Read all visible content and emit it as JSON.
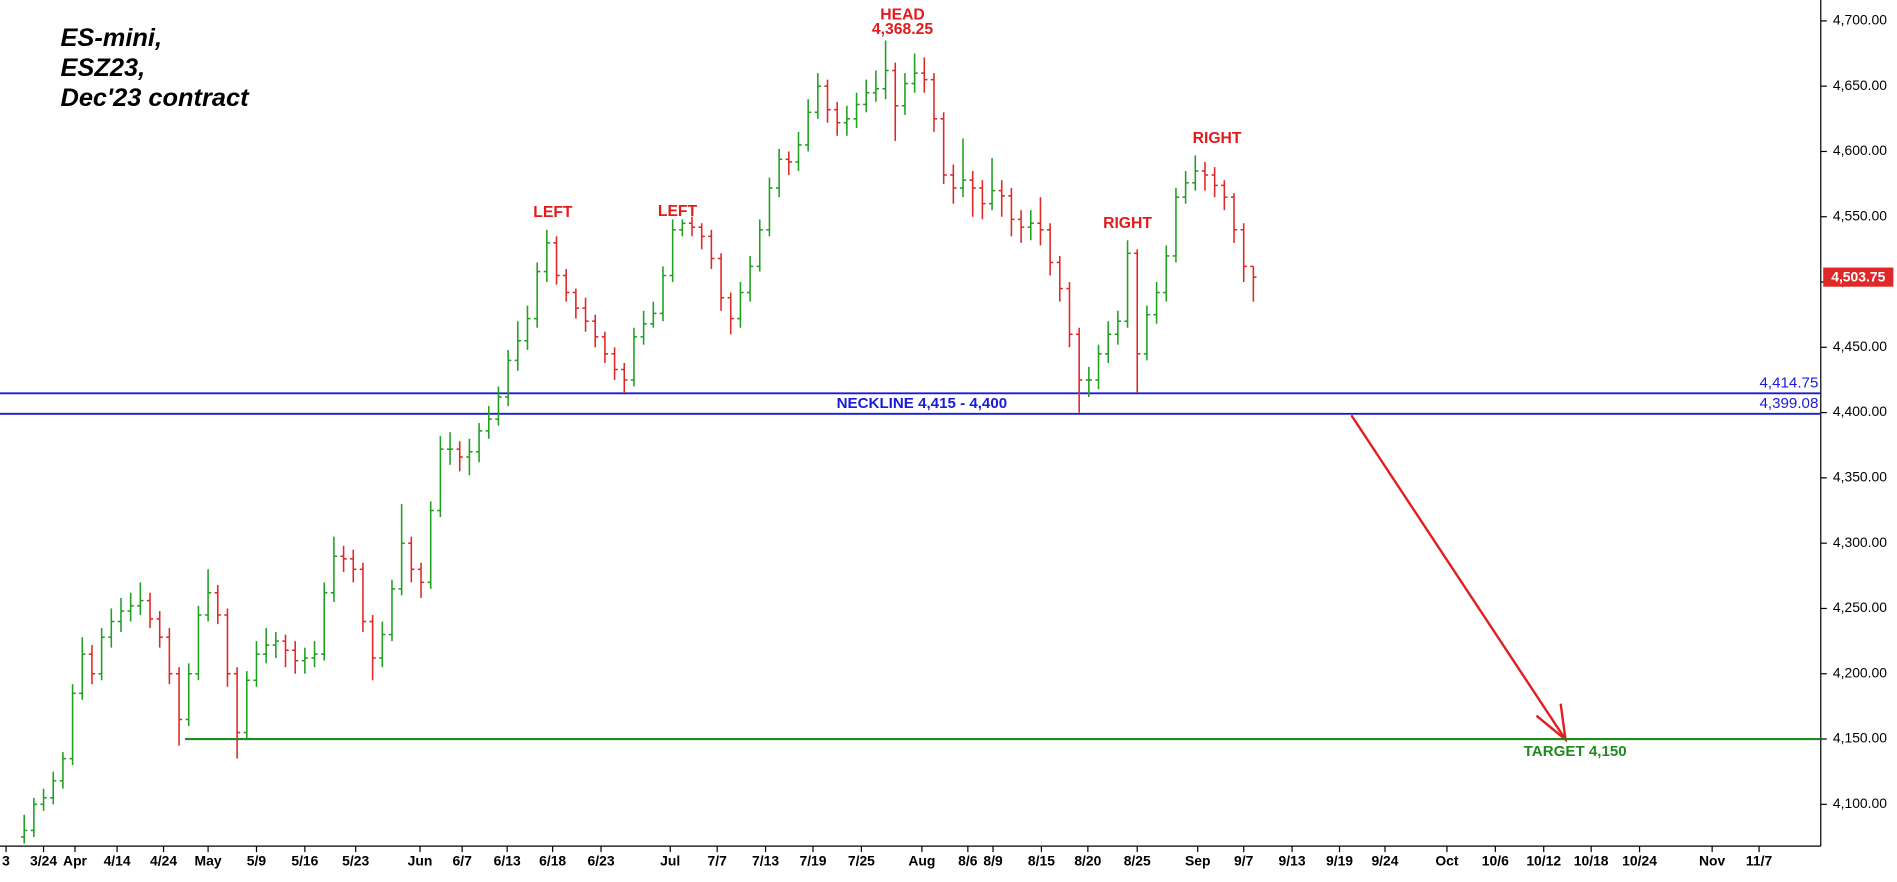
{
  "chart_data": {
    "type": "ohlc",
    "title_lines": [
      "ES-mini,",
      "ESZ23,",
      "Dec'23 contract"
    ],
    "open": [
      4075,
      4080,
      4100,
      4105,
      4118,
      4135,
      4185,
      4215,
      4200,
      4228,
      4240,
      4248,
      4252,
      4256,
      4242,
      4228,
      4200,
      4165,
      4200,
      4245,
      4262,
      4245,
      4200,
      4155,
      4195,
      4215,
      4222,
      4225,
      4218,
      4210,
      4212,
      4215,
      4262,
      4290,
      4288,
      4280,
      4240,
      4212,
      4230,
      4265,
      4300,
      4280,
      4270,
      4325,
      4372,
      4372,
      4366,
      4370,
      4386,
      4395,
      4412,
      4440,
      4455,
      4472,
      4508,
      4530,
      4505,
      4492,
      4480,
      4470,
      4458,
      4445,
      4433,
      4425,
      4458,
      4468,
      4476,
      4505,
      4540,
      4545,
      4542,
      4535,
      4518,
      4488,
      4472,
      4492,
      4512,
      4540,
      4572,
      4594,
      4592,
      4605,
      4630,
      4650,
      4632,
      4622,
      4625,
      4636,
      4645,
      4648,
      4662,
      4635,
      4652,
      4660,
      4655,
      4625,
      4582,
      4572,
      4578,
      4572,
      4560,
      4570,
      4566,
      4548,
      4542,
      4545,
      4540,
      4515,
      4495,
      4460,
      4425,
      4425,
      4445,
      4460,
      4470,
      4522,
      4445,
      4475,
      4492,
      4520,
      4565,
      4576,
      4585,
      4582,
      4574,
      4565,
      4540,
      4512
    ],
    "high": [
      4092,
      4105,
      4112,
      4125,
      4140,
      4192,
      4228,
      4222,
      4235,
      4250,
      4258,
      4262,
      4270,
      4262,
      4248,
      4235,
      4205,
      4208,
      4252,
      4280,
      4268,
      4250,
      4205,
      4202,
      4225,
      4235,
      4232,
      4230,
      4225,
      4220,
      4225,
      4270,
      4305,
      4298,
      4295,
      4285,
      4245,
      4240,
      4272,
      4330,
      4305,
      4285,
      4332,
      4382,
      4385,
      4378,
      4380,
      4392,
      4405,
      4420,
      4448,
      4470,
      4482,
      4515,
      4540,
      4535,
      4510,
      4495,
      4488,
      4475,
      4462,
      4450,
      4438,
      4465,
      4478,
      4485,
      4512,
      4548,
      4548,
      4550,
      4545,
      4540,
      4522,
      4492,
      4500,
      4520,
      4548,
      4580,
      4602,
      4600,
      4615,
      4640,
      4660,
      4655,
      4638,
      4635,
      4645,
      4655,
      4662,
      4685,
      4668,
      4660,
      4675,
      4672,
      4660,
      4630,
      4590,
      4610,
      4585,
      4578,
      4595,
      4578,
      4572,
      4555,
      4555,
      4565,
      4545,
      4520,
      4500,
      4465,
      4435,
      4452,
      4470,
      4478,
      4532,
      4525,
      4482,
      4500,
      4528,
      4572,
      4585,
      4597,
      4592,
      4588,
      4578,
      4568,
      4545,
      4512
    ],
    "low": [
      4070,
      4075,
      4095,
      4100,
      4112,
      4130,
      4180,
      4192,
      4195,
      4220,
      4232,
      4240,
      4245,
      4235,
      4220,
      4192,
      4145,
      4160,
      4195,
      4240,
      4238,
      4190,
      4135,
      4150,
      4190,
      4208,
      4212,
      4205,
      4200,
      4200,
      4205,
      4210,
      4255,
      4278,
      4270,
      4232,
      4195,
      4205,
      4225,
      4260,
      4270,
      4258,
      4265,
      4320,
      4360,
      4355,
      4352,
      4362,
      4380,
      4390,
      4405,
      4432,
      4448,
      4465,
      4500,
      4498,
      4485,
      4472,
      4462,
      4450,
      4438,
      4425,
      4415,
      4420,
      4452,
      4465,
      4470,
      4500,
      4535,
      4535,
      4525,
      4510,
      4478,
      4460,
      4465,
      4485,
      4508,
      4535,
      4565,
      4582,
      4585,
      4600,
      4625,
      4622,
      4612,
      4612,
      4618,
      4630,
      4638,
      4640,
      4608,
      4628,
      4645,
      4645,
      4615,
      4575,
      4560,
      4565,
      4550,
      4548,
      4555,
      4550,
      4535,
      4530,
      4532,
      4528,
      4505,
      4485,
      4450,
      4400,
      4412,
      4418,
      4438,
      4452,
      4465,
      4415,
      4440,
      4468,
      4485,
      4515,
      4560,
      4570,
      4570,
      4565,
      4555,
      4530,
      4500,
      4485
    ],
    "close": [
      4080,
      4100,
      4105,
      4118,
      4135,
      4185,
      4215,
      4200,
      4228,
      4240,
      4248,
      4252,
      4256,
      4242,
      4228,
      4200,
      4165,
      4200,
      4245,
      4262,
      4245,
      4200,
      4155,
      4195,
      4215,
      4222,
      4225,
      4218,
      4210,
      4212,
      4215,
      4262,
      4290,
      4288,
      4280,
      4240,
      4212,
      4230,
      4265,
      4300,
      4280,
      4270,
      4325,
      4372,
      4372,
      4366,
      4370,
      4386,
      4395,
      4412,
      4440,
      4455,
      4472,
      4508,
      4530,
      4505,
      4492,
      4480,
      4470,
      4458,
      4445,
      4433,
      4425,
      4458,
      4468,
      4476,
      4505,
      4540,
      4545,
      4542,
      4535,
      4518,
      4488,
      4472,
      4492,
      4512,
      4540,
      4572,
      4594,
      4592,
      4605,
      4630,
      4650,
      4632,
      4622,
      4625,
      4636,
      4645,
      4648,
      4662,
      4635,
      4652,
      4660,
      4655,
      4625,
      4582,
      4572,
      4578,
      4572,
      4560,
      4570,
      4566,
      4548,
      4542,
      4545,
      4540,
      4515,
      4495,
      4460,
      4425,
      4425,
      4445,
      4460,
      4470,
      4522,
      4445,
      4475,
      4492,
      4520,
      4565,
      4576,
      4585,
      4582,
      4574,
      4565,
      4540,
      4512,
      4503.75
    ],
    "up_color": "#22a022",
    "down_color": "#e02828",
    "last_price_label": "4,503.75",
    "xlim": [
      -2.5,
      185.625
    ],
    "ylim": [
      4068,
      4716
    ],
    "xticks": [
      {
        "value": -1.875,
        "label": "3"
      },
      {
        "value": 2,
        "label": "3/24"
      },
      {
        "value": 5.25,
        "label": "Apr"
      },
      {
        "value": 9.6,
        "label": "4/14"
      },
      {
        "value": 14.4,
        "label": "4/24"
      },
      {
        "value": 19,
        "label": "May"
      },
      {
        "value": 24,
        "label": "5/9"
      },
      {
        "value": 29,
        "label": "5/16"
      },
      {
        "value": 34.25,
        "label": "5/23"
      },
      {
        "value": 40.9,
        "label": "Jun"
      },
      {
        "value": 45.25,
        "label": "6/7"
      },
      {
        "value": 49.9,
        "label": "6/13"
      },
      {
        "value": 54.6,
        "label": "6/18"
      },
      {
        "value": 59.6,
        "label": "6/23"
      },
      {
        "value": 66.75,
        "label": "Jul"
      },
      {
        "value": 71.6,
        "label": "7/7"
      },
      {
        "value": 76.6,
        "label": "7/13"
      },
      {
        "value": 81.5,
        "label": "7/19"
      },
      {
        "value": 86.5,
        "label": "7/25"
      },
      {
        "value": 92.75,
        "label": "Aug"
      },
      {
        "value": 97.5,
        "label": "8/6"
      },
      {
        "value": 100.1,
        "label": "8/9"
      },
      {
        "value": 105.1,
        "label": "8/15"
      },
      {
        "value": 109.9,
        "label": "8/20"
      },
      {
        "value": 115,
        "label": "8/25"
      },
      {
        "value": 121.25,
        "label": "Sep"
      },
      {
        "value": 126,
        "label": "9/7"
      },
      {
        "value": 131,
        "label": "9/13"
      },
      {
        "value": 135.9,
        "label": "9/19"
      },
      {
        "value": 140.6,
        "label": "9/24"
      },
      {
        "value": 147,
        "label": "Oct"
      },
      {
        "value": 152,
        "label": "10/6"
      },
      {
        "value": 157,
        "label": "10/12"
      },
      {
        "value": 161.9,
        "label": "10/18"
      },
      {
        "value": 166.9,
        "label": "10/24"
      },
      {
        "value": 174.4,
        "label": "Nov"
      },
      {
        "value": 179.25,
        "label": "11/7"
      }
    ],
    "yticks": [
      {
        "value": 4100,
        "label": "4,100.00"
      },
      {
        "value": 4150,
        "label": "4,150.00"
      },
      {
        "value": 4200,
        "label": "4,200.00"
      },
      {
        "value": 4250,
        "label": "4,250.00"
      },
      {
        "value": 4300,
        "label": "4,300.00"
      },
      {
        "value": 4350,
        "label": "4,350.00"
      },
      {
        "value": 4400,
        "label": "4,400.00"
      },
      {
        "value": 4450,
        "label": "4,450.00"
      },
      {
        "value": 4500,
        "label": "4,500.00"
      },
      {
        "value": 4550,
        "label": "4,550.00"
      },
      {
        "value": 4600,
        "label": "4,600.00"
      },
      {
        "value": 4650,
        "label": "4,650.00"
      },
      {
        "value": 4700,
        "label": "4,700.00"
      }
    ],
    "grid": false,
    "levels": [
      {
        "value": 4414.75,
        "label": "4,414.75",
        "color": "#1a1adc"
      },
      {
        "value": 4399.08,
        "label": "4,399.08",
        "color": "#1a1adc"
      }
    ],
    "neckline_label": "NECKLINE 4,415 - 4,400",
    "target": {
      "value": 4150,
      "label": "TARGET 4,150",
      "color": "#1f8a1f"
    },
    "annotations": [
      "HEAD",
      "4,368.25",
      "LEFT",
      "LEFT",
      "RIGHT",
      "RIGHT"
    ]
  }
}
